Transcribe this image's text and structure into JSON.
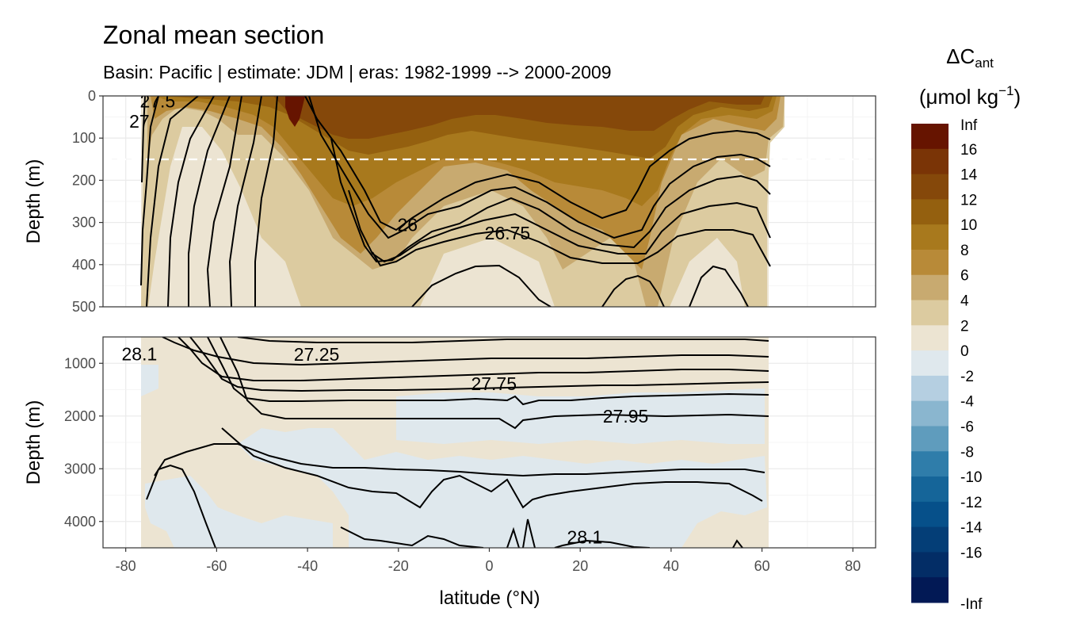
{
  "chart_data": {
    "type": "heatmap",
    "title": "Zonal mean section",
    "subtitle": "Basin: Pacific | estimate: JDM  | eras: 1982-1999 --> 2000-2009",
    "xlabel": "latitude (°N)",
    "ylabel": "Depth (m)",
    "xlim": [
      -85,
      85
    ],
    "x_ticks": [
      -80,
      -60,
      -40,
      -20,
      0,
      20,
      40,
      60,
      80
    ],
    "x_tick_labels": [
      "-80",
      "-60",
      "-40",
      "-20",
      "0",
      "20",
      "40",
      "60",
      "80"
    ],
    "panels": [
      {
        "name": "upper",
        "ylim": [
          0,
          500
        ],
        "y_reversed": true,
        "y_ticks": [
          0,
          100,
          200,
          300,
          400,
          500
        ],
        "y_tick_labels": [
          "0",
          "100",
          "200",
          "300",
          "400",
          "500"
        ],
        "reference_line_depth": 150,
        "contour_labels": [
          {
            "text": "26",
            "lat": -18,
            "depth": 305
          },
          {
            "text": "26.75",
            "lat": 4,
            "depth": 325
          },
          {
            "text": "27",
            "lat": -77,
            "depth": 60
          },
          {
            "text": "27.5",
            "lat": -73,
            "depth": 12
          }
        ]
      },
      {
        "name": "lower",
        "ylim": [
          500,
          4500
        ],
        "y_reversed": true,
        "y_ticks": [
          1000,
          2000,
          3000,
          4000
        ],
        "y_tick_labels": [
          "1000",
          "2000",
          "3000",
          "4000"
        ],
        "contour_labels": [
          {
            "text": "28.1",
            "lat": -77,
            "depth": 820
          },
          {
            "text": "27.25",
            "lat": -38,
            "depth": 830
          },
          {
            "text": "27.75",
            "lat": 1,
            "depth": 1390
          },
          {
            "text": "27.95",
            "lat": 30,
            "depth": 2000
          },
          {
            "text": "28.1",
            "lat": 21,
            "depth": 4300
          }
        ]
      }
    ],
    "legend": {
      "title": "ΔC",
      "title_subscript": "ant",
      "units": "(μmol kg",
      "units_superscript": "−1",
      "units_close": ")",
      "placement": "right",
      "labels": [
        "Inf",
        "16",
        "14",
        "12",
        "10",
        "8",
        "6",
        "4",
        "2",
        "0",
        "-2",
        "-4",
        "-6",
        "-8",
        "-10",
        "-12",
        "-14",
        "-16",
        "-Inf"
      ],
      "colors": [
        "#661400",
        "#7a3406",
        "#85480a",
        "#94600f",
        "#a8791d",
        "#b88a38",
        "#c8aa70",
        "#dccba0",
        "#ece4d2",
        "#dfe8ed",
        "#b5cfe1",
        "#8ab6cf",
        "#5f9cbd",
        "#2f7daa",
        "#156599",
        "#06508a",
        "#043e77",
        "#032d66",
        "#021955"
      ]
    },
    "background_color": "#ece4d2",
    "line_color": "#000000",
    "grid": true
  }
}
